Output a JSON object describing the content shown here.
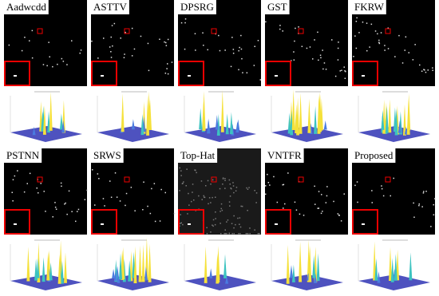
{
  "panels": [
    {
      "label": "Aadwcdd"
    },
    {
      "label": "ASTTV"
    },
    {
      "label": "DPSRG"
    },
    {
      "label": "GST"
    },
    {
      "label": "FKRW"
    },
    {
      "label": "PSTNN"
    },
    {
      "label": "SRWS"
    },
    {
      "label": "Top-Hat"
    },
    {
      "label": "VNTFR"
    },
    {
      "label": "Proposed"
    }
  ]
}
